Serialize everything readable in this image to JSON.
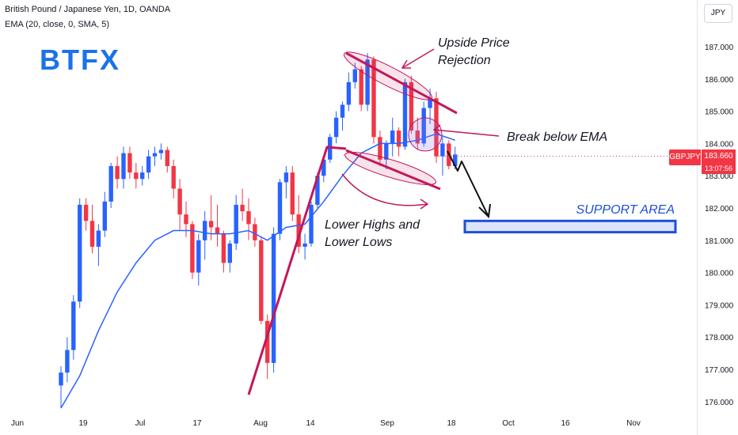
{
  "header": {
    "title": "British Pound / Japanese Yen, 1D, OANDA",
    "indicator": "EMA (20, close, 0, SMA, 5)"
  },
  "currency_button": "JPY",
  "logo": "BTFX",
  "price_tag": {
    "symbol": "GBPJPY",
    "price": "183.660",
    "countdown": "13:07:56"
  },
  "colors": {
    "up": "#2962ff",
    "down": "#f23645",
    "ema": "#2962ff",
    "annotation": "#c2185b",
    "support": "#1e4fd8",
    "logo": "#1a73e8"
  },
  "annotations": {
    "upside": [
      "Upside Price",
      "Rejection"
    ],
    "break": "Break below EMA",
    "lower": [
      "Lower Highs and",
      "Lower Lows"
    ],
    "support": "SUPPORT AREA"
  },
  "chart_data": {
    "type": "candlestick",
    "title": "British Pound / Japanese Yen, 1D, OANDA",
    "y_range": [
      175.8,
      187.8
    ],
    "y_ticks": [
      "187.000",
      "186.000",
      "185.000",
      "184.000",
      "183.000",
      "182.000",
      "181.000",
      "180.000",
      "179.000",
      "178.000",
      "177.000",
      "176.000"
    ],
    "x_ticks": [
      "Jun",
      "19",
      "Jul",
      "17",
      "Aug",
      "14",
      "Sep",
      "18",
      "Oct",
      "16",
      "Nov"
    ],
    "ohlc": [
      [
        176.5,
        177.1,
        175.8,
        176.9
      ],
      [
        176.9,
        178.0,
        176.6,
        177.6
      ],
      [
        177.6,
        179.3,
        177.3,
        179.1
      ],
      [
        179.1,
        182.3,
        178.9,
        182.1
      ],
      [
        182.1,
        182.3,
        181.3,
        181.6
      ],
      [
        181.6,
        182.1,
        180.6,
        180.8
      ],
      [
        180.8,
        181.5,
        180.2,
        181.3
      ],
      [
        181.3,
        182.5,
        181.1,
        182.2
      ],
      [
        182.2,
        183.4,
        182.0,
        183.3
      ],
      [
        183.3,
        183.6,
        182.6,
        182.9
      ],
      [
        182.9,
        183.9,
        182.6,
        183.7
      ],
      [
        183.7,
        183.9,
        182.9,
        183.1
      ],
      [
        183.1,
        183.4,
        182.6,
        182.9
      ],
      [
        182.9,
        183.3,
        182.7,
        183.1
      ],
      [
        183.1,
        183.8,
        182.9,
        183.6
      ],
      [
        183.6,
        183.9,
        183.3,
        183.7
      ],
      [
        183.7,
        184.0,
        183.5,
        183.8
      ],
      [
        183.8,
        183.9,
        183.1,
        183.3
      ],
      [
        183.3,
        183.5,
        182.3,
        182.6
      ],
      [
        182.6,
        182.9,
        181.3,
        181.8
      ],
      [
        181.8,
        182.2,
        181.1,
        181.5
      ],
      [
        181.5,
        181.6,
        179.8,
        180.0
      ],
      [
        180.0,
        181.2,
        179.6,
        181.0
      ],
      [
        181.0,
        181.9,
        180.4,
        181.6
      ],
      [
        181.6,
        182.4,
        181.0,
        181.4
      ],
      [
        181.4,
        182.1,
        180.8,
        181.2
      ],
      [
        181.2,
        181.3,
        180.0,
        180.3
      ],
      [
        180.3,
        181.0,
        180.0,
        180.9
      ],
      [
        180.9,
        182.4,
        180.7,
        182.1
      ],
      [
        182.1,
        182.6,
        181.6,
        181.9
      ],
      [
        181.9,
        182.3,
        181.0,
        181.5
      ],
      [
        181.5,
        181.7,
        180.8,
        181.0
      ],
      [
        181.0,
        181.1,
        178.4,
        178.5
      ],
      [
        178.5,
        178.7,
        176.7,
        177.2
      ],
      [
        177.2,
        181.4,
        176.9,
        181.2
      ],
      [
        181.2,
        182.9,
        181.0,
        182.8
      ],
      [
        182.8,
        183.3,
        182.3,
        183.1
      ],
      [
        183.1,
        183.3,
        181.6,
        181.8
      ],
      [
        181.8,
        182.4,
        180.6,
        180.8
      ],
      [
        180.8,
        181.2,
        180.4,
        180.9
      ],
      [
        180.9,
        182.2,
        180.8,
        182.1
      ],
      [
        182.1,
        183.1,
        182.0,
        183.0
      ],
      [
        183.0,
        183.6,
        182.8,
        183.5
      ],
      [
        183.5,
        184.3,
        183.4,
        184.2
      ],
      [
        184.2,
        185.0,
        184.0,
        184.8
      ],
      [
        184.8,
        185.3,
        184.4,
        185.2
      ],
      [
        185.2,
        186.2,
        185.0,
        185.9
      ],
      [
        185.9,
        186.5,
        185.7,
        186.3
      ],
      [
        186.3,
        186.4,
        185.0,
        185.2
      ],
      [
        185.2,
        186.8,
        185.0,
        186.6
      ],
      [
        186.6,
        186.7,
        184.0,
        184.2
      ],
      [
        184.2,
        184.4,
        183.3,
        183.5
      ],
      [
        183.5,
        184.1,
        183.2,
        184.0
      ],
      [
        184.0,
        184.8,
        183.6,
        184.4
      ],
      [
        184.4,
        184.5,
        183.6,
        183.9
      ],
      [
        183.9,
        186.0,
        183.8,
        185.9
      ],
      [
        185.9,
        186.1,
        184.3,
        184.4
      ],
      [
        184.4,
        184.8,
        183.8,
        184.0
      ],
      [
        184.0,
        185.3,
        183.9,
        185.1
      ],
      [
        185.1,
        185.7,
        184.6,
        185.4
      ],
      [
        185.4,
        185.6,
        183.4,
        183.6
      ],
      [
        183.6,
        184.2,
        183.0,
        184.0
      ],
      [
        184.0,
        184.1,
        183.2,
        183.3
      ],
      [
        183.3,
        183.9,
        183.2,
        183.66
      ]
    ],
    "ema": [
      [
        0,
        175.8
      ],
      [
        3,
        176.8
      ],
      [
        6,
        178.2
      ],
      [
        9,
        179.4
      ],
      [
        12,
        180.3
      ],
      [
        15,
        181.0
      ],
      [
        18,
        181.3
      ],
      [
        21,
        181.3
      ],
      [
        24,
        181.2
      ],
      [
        27,
        181.2
      ],
      [
        30,
        181.3
      ],
      [
        33,
        181.0
      ],
      [
        36,
        181.4
      ],
      [
        39,
        181.5
      ],
      [
        42,
        182.2
      ],
      [
        45,
        183.0
      ],
      [
        48,
        183.7
      ],
      [
        51,
        184.0
      ],
      [
        54,
        184.0
      ],
      [
        57,
        184.1
      ],
      [
        60,
        184.3
      ],
      [
        63,
        184.1
      ]
    ],
    "support_zone": [
      181.25,
      181.6
    ]
  }
}
